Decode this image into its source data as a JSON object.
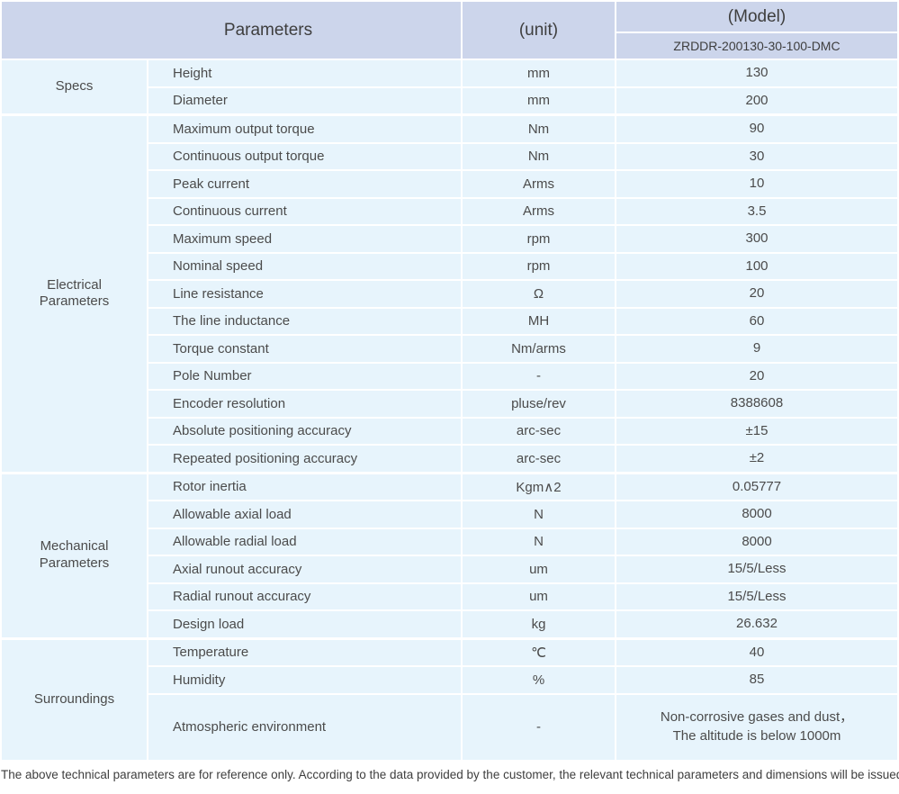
{
  "colors": {
    "header_bg": "#ccd5eb",
    "header_text": "#3e3e3e",
    "cell_bg": "#e7f4fc",
    "cell_text": "#4b4b4b"
  },
  "header": {
    "parameters_label": "Parameters",
    "unit_label": "(unit)",
    "model_label": "(Model)",
    "model_number": "ZRDDR-200130-30-100-DMC"
  },
  "groups": [
    {
      "label": "Specs",
      "rows": [
        {
          "name": "Height",
          "unit": "mm",
          "value": "130"
        },
        {
          "name": "Diameter",
          "unit": "mm",
          "value": "200"
        }
      ]
    },
    {
      "label": "Electrical\nParameters",
      "rows": [
        {
          "name": "Maximum output torque",
          "unit": "Nm",
          "value": "90"
        },
        {
          "name": "Continuous output torque",
          "unit": "Nm",
          "value": "30"
        },
        {
          "name": "Peak current",
          "unit": "Arms",
          "value": "10"
        },
        {
          "name": "Continuous current",
          "unit": "Arms",
          "value": "3.5"
        },
        {
          "name": "Maximum speed",
          "unit": "rpm",
          "value": "300"
        },
        {
          "name": "Nominal speed",
          "unit": "rpm",
          "value": "100"
        },
        {
          "name": "Line resistance",
          "unit": "Ω",
          "value": "20"
        },
        {
          "name": "The line inductance",
          "unit": "MH",
          "value": "60"
        },
        {
          "name": "Torque constant",
          "unit": "Nm/arms",
          "value": "9"
        },
        {
          "name": "Pole Number",
          "unit": "-",
          "value": "20"
        },
        {
          "name": "Encoder resolution",
          "unit": "pluse/rev",
          "value": "8388608"
        },
        {
          "name": "Absolute positioning accuracy",
          "unit": "arc-sec",
          "value": "±15"
        },
        {
          "name": "Repeated positioning accuracy",
          "unit": "arc-sec",
          "value": "±2"
        }
      ]
    },
    {
      "label": "Mechanical\nParameters",
      "rows": [
        {
          "name": "Rotor inertia",
          "unit": "Kgm∧2",
          "value": "0.05777"
        },
        {
          "name": "Allowable axial load",
          "unit": "N",
          "value": "8000"
        },
        {
          "name": "Allowable radial load",
          "unit": "N",
          "value": "8000"
        },
        {
          "name": "Axial runout accuracy",
          "unit": "um",
          "value": "15/5/Less"
        },
        {
          "name": "Radial runout accuracy",
          "unit": "um",
          "value": "15/5/Less"
        },
        {
          "name": "Design load",
          "unit": "kg",
          "value": "26.632"
        }
      ]
    },
    {
      "label": "Surroundings",
      "rows": [
        {
          "name": "Temperature",
          "unit": "℃",
          "value": "40"
        },
        {
          "name": "Humidity",
          "unit": "%",
          "value": "85"
        },
        {
          "name": "Atmospheric environment",
          "unit": "-",
          "value": "Non-corrosive gases and dust，\nThe altitude is below 1000m",
          "tall": true
        }
      ]
    }
  ],
  "footnote": "The above technical parameters are for reference only. According to the data provided by the customer, the relevant technical parameters and dimensions will be issued."
}
